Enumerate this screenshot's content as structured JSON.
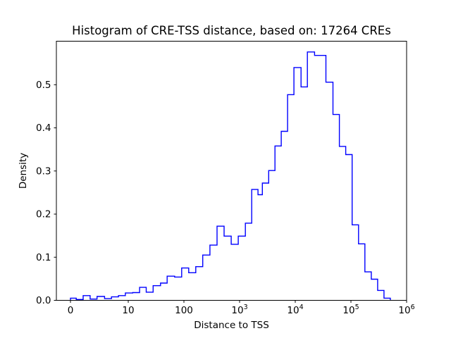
{
  "figure": {
    "background_color": "#ffffff",
    "axis_color": "#000000",
    "text_color": "#000000"
  },
  "chart_data": {
    "type": "step-histogram",
    "title": "Histogram of CRE-TSS distance, based on: 17264 CREs",
    "xlabel": "Distance to TSS",
    "ylabel": "Density",
    "sample_count": 17264,
    "line_color": "#0000ff",
    "x_scale": "symlog",
    "x_linthresh": 10,
    "xlim": [
      0,
      1000000
    ],
    "ylim": [
      0,
      0.601
    ],
    "grid": false,
    "legend": null,
    "x_ticks": [
      {
        "label": "0",
        "exp": null,
        "value": 0
      },
      {
        "label": "10",
        "exp": null,
        "value": 10
      },
      {
        "label": "100",
        "exp": null,
        "value": 100
      },
      {
        "label": "10",
        "exp": "3",
        "value": 1000
      },
      {
        "label": "10",
        "exp": "4",
        "value": 10000
      },
      {
        "label": "10",
        "exp": "5",
        "value": 100000
      },
      {
        "label": "10",
        "exp": "6",
        "value": 1000000
      }
    ],
    "y_ticks": [
      {
        "label": "0.0",
        "value": 0.0
      },
      {
        "label": "0.1",
        "value": 0.1
      },
      {
        "label": "0.2",
        "value": 0.2
      },
      {
        "label": "0.3",
        "value": 0.3
      },
      {
        "label": "0.4",
        "value": 0.4
      },
      {
        "label": "0.5",
        "value": 0.5
      }
    ],
    "bin_edges": [
      0,
      1,
      2.2,
      3.4,
      4.6,
      5.9,
      7.1,
      8.3,
      9.5,
      12,
      16,
      21,
      28,
      38,
      50,
      68,
      91,
      122,
      163,
      218,
      293,
      393,
      527,
      706,
      947,
      1270,
      1650,
      2140,
      2560,
      3330,
      4320,
      5600,
      7280,
      9470,
      12700,
      16500,
      22200,
      35500,
      47600,
      62000,
      80700,
      105000,
      137000,
      178000,
      232000,
      302000,
      392000,
      510000
    ],
    "densities": [
      0.005,
      0.002,
      0.011,
      0.003,
      0.009,
      0.004,
      0.008,
      0.011,
      0.017,
      0.018,
      0.03,
      0.019,
      0.034,
      0.04,
      0.056,
      0.054,
      0.075,
      0.064,
      0.078,
      0.105,
      0.128,
      0.172,
      0.149,
      0.13,
      0.149,
      0.179,
      0.257,
      0.245,
      0.272,
      0.301,
      0.358,
      0.392,
      0.477,
      0.54,
      0.495,
      0.576,
      0.568,
      0.506,
      0.431,
      0.357,
      0.338,
      0.175,
      0.131,
      0.066,
      0.049,
      0.023,
      0.005
    ]
  }
}
